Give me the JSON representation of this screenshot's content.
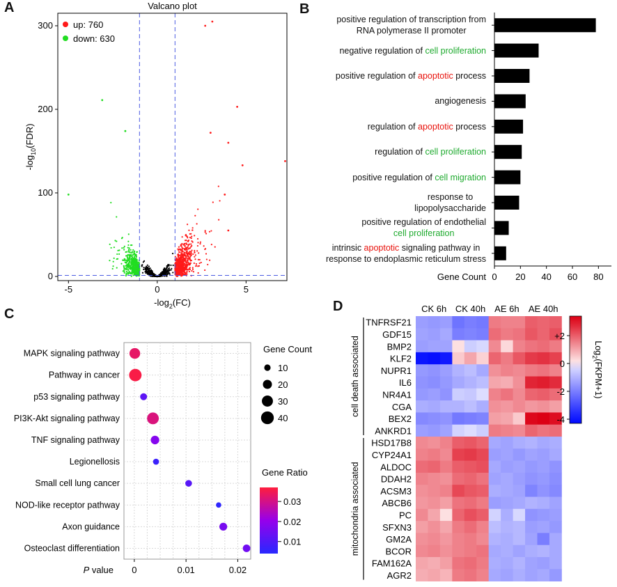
{
  "colors": {
    "up": "#ff1a1a",
    "down": "#22dd22",
    "ns": "#000000",
    "threshold": "#4a5be0",
    "red": "#e8120c",
    "green": "#1eaa2e"
  },
  "panels": {
    "a": "A",
    "b": "B",
    "c": "C",
    "d": "D"
  },
  "chart_data": [
    {
      "id": "volcano",
      "type": "scatter",
      "title": "Valcano plot",
      "xlabel": "-log2(FC)",
      "ylabel": "-log10(FDR)",
      "xlim": [
        -5.6,
        7.3
      ],
      "ylim": [
        -5,
        315
      ],
      "xticks": [
        -5,
        0,
        5
      ],
      "yticks": [
        0,
        100,
        200,
        300
      ],
      "thresholds": {
        "x": [
          -1,
          1
        ],
        "y": [
          1.3
        ]
      },
      "legend": [
        {
          "label": "up: 760",
          "color": "#ff1a1a"
        },
        {
          "label": "down: 630",
          "color": "#22dd22"
        }
      ],
      "counts": {
        "up": 760,
        "down": 630
      },
      "notable_points": [
        {
          "x": 3.1,
          "y": 305,
          "group": "up"
        },
        {
          "x": 2.7,
          "y": 300,
          "group": "up"
        },
        {
          "x": 4.5,
          "y": 203,
          "group": "up"
        },
        {
          "x": 3.0,
          "y": 172,
          "group": "up"
        },
        {
          "x": 4.0,
          "y": 160,
          "group": "up"
        },
        {
          "x": 7.2,
          "y": 138,
          "group": "up"
        },
        {
          "x": 4.8,
          "y": 133,
          "group": "up"
        },
        {
          "x": 3.8,
          "y": 98,
          "group": "up"
        },
        {
          "x": 4.0,
          "y": 55,
          "group": "up"
        },
        {
          "x": -3.1,
          "y": 211,
          "group": "down"
        },
        {
          "x": -1.8,
          "y": 174,
          "group": "down"
        },
        {
          "x": -5.0,
          "y": 98,
          "group": "down"
        }
      ]
    },
    {
      "id": "go-bar",
      "type": "bar",
      "orientation": "horizontal",
      "xlabel": "Gene Count",
      "xlim": [
        0,
        90
      ],
      "xticks": [
        0,
        20,
        40,
        60,
        80
      ],
      "categories": [
        [
          {
            "t": "positive regulation of transcription from"
          },
          {
            "t": "RNA polymerase II promoter"
          }
        ],
        [
          {
            "t": "negative regulation of "
          },
          {
            "t": "cell proliferation",
            "c": "green"
          }
        ],
        [
          {
            "t": "positive regulation of "
          },
          {
            "t": "apoptotic",
            "c": "red"
          },
          {
            "t": " process"
          }
        ],
        [
          {
            "t": "angiogenesis"
          }
        ],
        [
          {
            "t": "regulation of "
          },
          {
            "t": "apoptotic",
            "c": "red"
          },
          {
            "t": " process"
          }
        ],
        [
          {
            "t": "regulation of "
          },
          {
            "t": "cell proliferation",
            "c": "green"
          }
        ],
        [
          {
            "t": "positive regulation of "
          },
          {
            "t": "cell migration",
            "c": "green"
          }
        ],
        [
          {
            "t": "response to"
          },
          {
            "t": "lipopolysaccharide"
          }
        ],
        [
          {
            "t": "positive regulation of endothelial"
          },
          {
            "t": "cell proliferation",
            "c": "green"
          }
        ],
        [
          {
            "t": "intrinsic "
          },
          {
            "t": "apoptotic",
            "c": "red"
          },
          {
            "t": " signaling pathway in"
          },
          {
            "t": "response to endoplasmic reticulum stress"
          }
        ]
      ],
      "category_lines": [
        [
          [
            "positive regulation of transcription from"
          ],
          [
            "RNA polymerase II promoter"
          ]
        ],
        [
          [
            "negative regulation of ",
            "cell proliferation"
          ]
        ],
        [
          [
            "positive regulation of ",
            "apoptotic",
            " process"
          ]
        ],
        [
          [
            "angiogenesis"
          ]
        ],
        [
          [
            "regulation of ",
            "apoptotic",
            " process"
          ]
        ],
        [
          [
            "regulation of ",
            "cell proliferation"
          ]
        ],
        [
          [
            "positive regulation of ",
            "cell migration"
          ]
        ],
        [
          [
            "response to"
          ],
          [
            "lipopolysaccharide"
          ]
        ],
        [
          [
            "positive regulation of endothelial"
          ],
          [
            "cell proliferation"
          ]
        ],
        [
          [
            "intrinsic ",
            "apoptotic",
            " signaling pathway in"
          ],
          [
            "response to endoplasmic reticulum stress"
          ]
        ]
      ],
      "values": [
        78,
        34,
        27,
        24,
        22,
        21,
        20,
        19,
        11,
        9
      ]
    },
    {
      "id": "kegg-dot",
      "type": "scatter",
      "xlabel_italic": "P",
      "xlabel_rest": " value",
      "xlim": [
        -0.002,
        0.0225
      ],
      "xticks": [
        "0",
        "0.01",
        "0.02"
      ],
      "xtick_values": [
        0,
        0.01,
        0.02
      ],
      "categories": [
        "MAPK signaling pathway",
        "Pathway in cancer",
        "p53 signaling pathway",
        "PI3K-Akt signaling pathway",
        "TNF signaling pathway",
        "Legionellosis",
        "Small cell lung cancer",
        "NOD-like receptor pathway",
        "Axon guidance",
        "Osteoclast differentiation"
      ],
      "pvalues": [
        0.0001,
        0.0002,
        0.0018,
        0.0036,
        0.004,
        0.0042,
        0.0105,
        0.0163,
        0.0172,
        0.0217
      ],
      "gene_count": [
        28,
        38,
        12,
        34,
        18,
        9,
        11,
        7,
        15,
        14
      ],
      "gene_ratio": [
        0.033,
        0.036,
        0.012,
        0.031,
        0.018,
        0.007,
        0.011,
        0.005,
        0.016,
        0.015
      ],
      "size_legend": {
        "title": "Gene Count",
        "values": [
          "10",
          "20",
          "30",
          "40"
        ]
      },
      "color_legend": {
        "title": "Gene Ratio",
        "ticks": [
          "0.03",
          "0.02",
          "0.01"
        ],
        "tick_values": [
          0.03,
          0.02,
          0.01
        ],
        "range": [
          0.004,
          0.037
        ]
      }
    },
    {
      "id": "heatmap",
      "type": "heatmap",
      "columns": [
        "CK 6h",
        "CK 40h",
        "AE 6h",
        "AE 40h"
      ],
      "groups": [
        {
          "label": "cell death associated",
          "rows": [
            0,
            9
          ]
        },
        {
          "label": "mitochondria associated",
          "rows": [
            10,
            21
          ]
        }
      ],
      "rows": [
        "TNFRSF21",
        "GDF15",
        "BMP2",
        "KLF2",
        "NUPR1",
        "IL6",
        "NR4A1",
        "CGA",
        "BEX2",
        "ANKRD1",
        "HSD17B8",
        "CYP24A1",
        "ALDOC",
        "DDAH2",
        "ACSM3",
        "ABCB6",
        "PC",
        "SFXN3",
        "GM2A",
        "BCOR",
        "FAM162A",
        "AGR2"
      ],
      "values": [
        [
          -1.4,
          -1.5,
          -1.4,
          -2.2,
          -2.0,
          -2.1,
          1.6,
          1.5,
          1.5,
          2.0,
          1.9,
          2.0
        ],
        [
          -1.3,
          -1.4,
          -1.2,
          -2.0,
          -1.9,
          -2.0,
          1.8,
          1.6,
          1.7,
          2.1,
          1.9,
          2.2
        ],
        [
          -1.4,
          -1.3,
          -1.3,
          0.2,
          -0.5,
          -0.3,
          1.4,
          0.3,
          1.5,
          1.7,
          1.8,
          1.6
        ],
        [
          -4.0,
          -4.1,
          -3.9,
          0.5,
          1.0,
          0.4,
          1.9,
          1.6,
          2.1,
          2.5,
          2.6,
          2.4
        ],
        [
          -1.5,
          -1.6,
          -1.4,
          -1.0,
          -0.8,
          -1.2,
          1.3,
          1.5,
          1.4,
          1.6,
          1.7,
          1.5
        ],
        [
          -1.6,
          -1.7,
          -1.5,
          -1.2,
          -1.0,
          -0.8,
          1.0,
          0.9,
          1.3,
          2.8,
          2.9,
          2.7
        ],
        [
          -1.5,
          -1.4,
          -1.6,
          -0.5,
          -0.6,
          -0.2,
          1.5,
          1.7,
          1.4,
          1.9,
          2.0,
          1.8
        ],
        [
          -1.1,
          -1.2,
          -1.0,
          -1.0,
          -0.8,
          -1.1,
          1.3,
          1.2,
          1.4,
          1.2,
          1.3,
          1.1
        ],
        [
          -1.8,
          -1.7,
          -1.6,
          -2.1,
          -2.0,
          -1.9,
          1.1,
          1.0,
          0.5,
          3.2,
          3.3,
          3.1
        ],
        [
          -1.4,
          -1.5,
          -1.3,
          -0.4,
          -0.2,
          -0.5,
          1.6,
          1.5,
          1.4,
          1.9,
          1.7,
          1.8
        ],
        [
          1.4,
          1.3,
          1.5,
          2.0,
          2.1,
          1.9,
          -1.2,
          -1.3,
          -1.1,
          -1.0,
          -1.2,
          -1.1
        ],
        [
          1.5,
          1.6,
          1.4,
          2.4,
          2.5,
          2.3,
          -1.4,
          -1.3,
          -1.5,
          -1.3,
          -1.4,
          -1.2
        ],
        [
          1.8,
          1.9,
          1.6,
          2.0,
          2.1,
          2.2,
          -1.2,
          -1.4,
          -1.3,
          -1.5,
          -1.4,
          -1.6
        ],
        [
          1.5,
          1.4,
          1.3,
          1.8,
          1.9,
          1.7,
          -1.3,
          -1.2,
          -1.4,
          -1.6,
          -1.5,
          -1.7
        ],
        [
          1.3,
          1.4,
          1.5,
          2.3,
          2.1,
          2.0,
          -1.1,
          -1.2,
          -1.3,
          -1.9,
          -1.6,
          -1.8
        ],
        [
          1.2,
          1.3,
          1.1,
          1.7,
          1.8,
          1.6,
          -1.4,
          -1.3,
          -1.2,
          -1.0,
          -1.1,
          -1.3
        ],
        [
          1.4,
          1.0,
          0.2,
          1.9,
          2.2,
          2.0,
          -0.4,
          -1.1,
          -0.3,
          -1.6,
          -1.5,
          -1.4
        ],
        [
          1.1,
          1.3,
          1.0,
          1.6,
          1.8,
          1.5,
          -0.8,
          -1.0,
          -0.9,
          -1.4,
          -1.3,
          -1.5
        ],
        [
          1.3,
          1.4,
          1.2,
          1.5,
          1.6,
          1.4,
          -1.0,
          -1.1,
          -0.9,
          -1.3,
          -2.0,
          -1.2
        ],
        [
          1.4,
          1.5,
          1.3,
          1.5,
          1.6,
          1.7,
          -1.2,
          -1.1,
          -1.3,
          -1.1,
          -1.0,
          -1.2
        ],
        [
          1.0,
          0.9,
          1.1,
          1.7,
          1.8,
          1.6,
          -1.1,
          -1.2,
          -1.0,
          -1.3,
          -1.4,
          -1.2
        ],
        [
          0.9,
          1.0,
          0.8,
          1.6,
          1.7,
          1.5,
          -1.2,
          -1.3,
          -1.1,
          -1.3,
          -1.2,
          -1.5
        ]
      ],
      "colorbar": {
        "title": "Log2(FKPM+1)",
        "ticks": [
          "+2",
          "0",
          "-2",
          "-4"
        ],
        "tick_values": [
          2,
          0,
          -2,
          -4
        ],
        "range": [
          -4.3,
          3.4
        ]
      }
    }
  ]
}
